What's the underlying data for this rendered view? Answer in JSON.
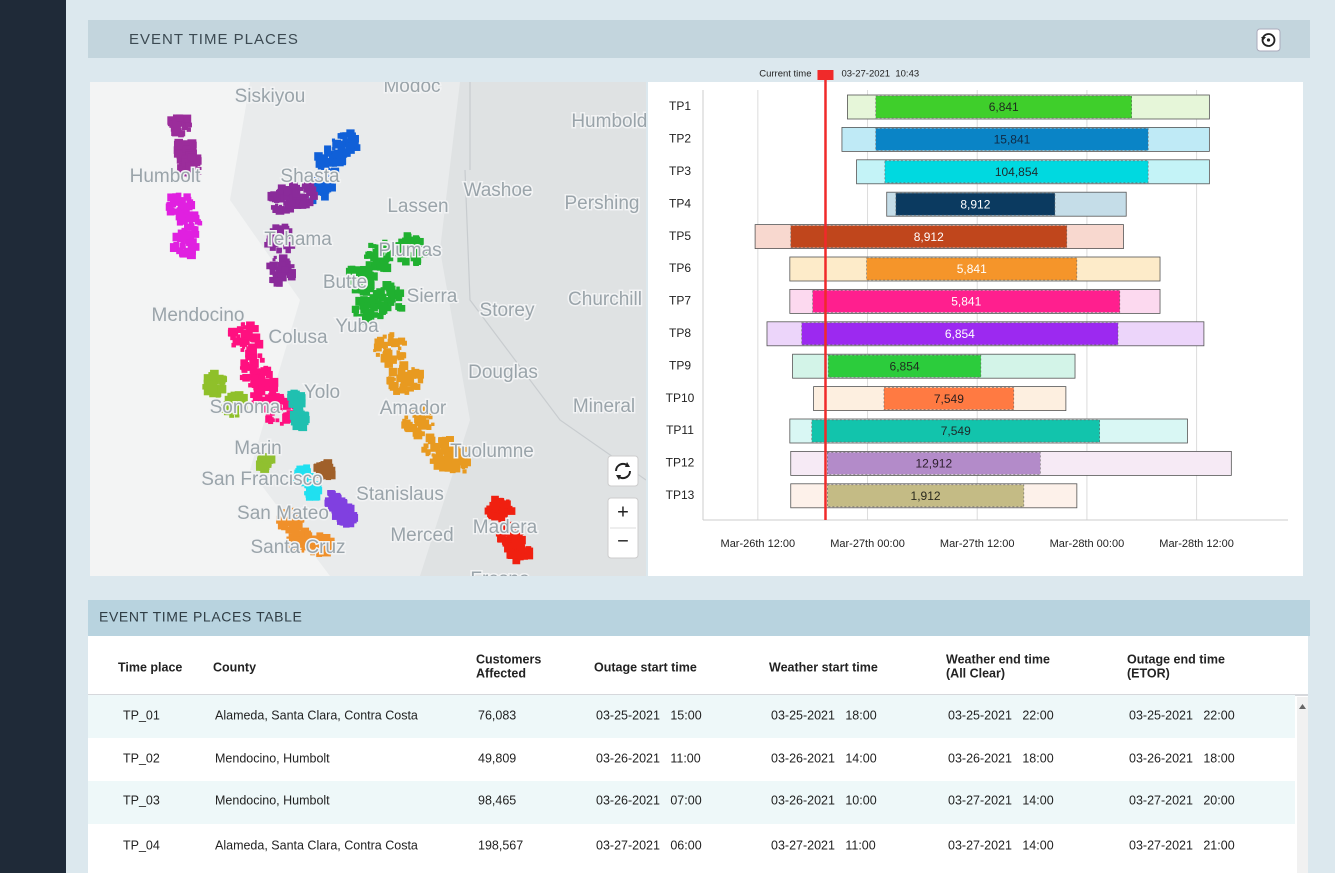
{
  "header": {
    "title": "EVENT TIME PLACES"
  },
  "map": {
    "labels": [
      "Siskiyou",
      "Modoc",
      "Humboldt",
      "Humbolt",
      "Shasta",
      "Lassen",
      "Washoe",
      "Pershing",
      "Tehama",
      "Plumas",
      "Butte",
      "Sierra",
      "Storey",
      "Churchill",
      "Mendocino",
      "Colusa",
      "Yuba",
      "Yolo",
      "Sonoma",
      "Amador",
      "Douglas",
      "Mineral",
      "Marin",
      "Tuolumne",
      "San Francisco",
      "Stanislaus",
      "San Mateo",
      "Merced",
      "Madera",
      "Santa Cruz",
      "Fresno"
    ],
    "zoom_in": "+",
    "zoom_out": "−"
  },
  "chart_data": {
    "type": "gantt",
    "current_time": {
      "label": "Current time",
      "text": "03-27-2021  10:43",
      "x": 19.4
    },
    "xlim": [
      6,
      70
    ],
    "xticks": [
      {
        "value": 12,
        "label": "Mar-26th 12:00"
      },
      {
        "value": 24,
        "label": "Mar-27th 00:00"
      },
      {
        "value": 36,
        "label": "Mar-27th 12:00"
      },
      {
        "value": 48,
        "label": "Mar-28th 00:00"
      },
      {
        "value": 60,
        "label": "Mar-28th 12:00"
      }
    ],
    "grid": true,
    "categories": [
      "TP1",
      "TP2",
      "TP3",
      "TP4",
      "TP5",
      "TP6",
      "TP7",
      "TP8",
      "TP9",
      "TP10",
      "TP11",
      "TP12",
      "TP13"
    ],
    "rows": [
      {
        "outer": [
          21.8,
          61.4
        ],
        "inner": [
          24.9,
          52.9
        ],
        "value": 6841,
        "value_label": "6,841",
        "color": "#3fcf2b",
        "light_color": "#e6f6d9",
        "text_color": "#1e2b1e"
      },
      {
        "outer": [
          21.2,
          61.4
        ],
        "inner": [
          24.9,
          54.7
        ],
        "value": 15841,
        "value_label": "15,841",
        "color": "#0a84c6",
        "light_color": "#bfeaf6",
        "text_color": "#102a44"
      },
      {
        "outer": [
          22.8,
          61.4
        ],
        "inner": [
          25.9,
          54.7
        ],
        "value": 104854,
        "value_label": "104,854",
        "color": "#00d9e0",
        "light_color": "#c4f3f7",
        "text_color": "#1e2b2e"
      },
      {
        "outer": [
          26.1,
          52.3
        ],
        "inner": [
          27.1,
          44.5
        ],
        "value": 8912,
        "value_label": "8,912",
        "color": "#0b3a60",
        "light_color": "#c5dde8",
        "text_color": "#ffffff"
      },
      {
        "outer": [
          11.7,
          52.0
        ],
        "inner": [
          15.6,
          45.8
        ],
        "value": 8912,
        "value_label": "8,912",
        "color": "#c0461c",
        "light_color": "#f8d8cf",
        "text_color": "#ffffff"
      },
      {
        "outer": [
          15.5,
          56.0
        ],
        "inner": [
          23.9,
          46.9
        ],
        "value": 5841,
        "value_label": "5,841",
        "color": "#f5952a",
        "light_color": "#fdebc9",
        "text_color": "#ffffff"
      },
      {
        "outer": [
          15.5,
          56.0
        ],
        "inner": [
          18.0,
          51.6
        ],
        "value": 5841,
        "value_label": "5,841",
        "color": "#ff1f8e",
        "light_color": "#fcd9ef",
        "text_color": "#ffffff"
      },
      {
        "outer": [
          13.0,
          60.8
        ],
        "inner": [
          16.8,
          51.4
        ],
        "value": 6854,
        "value_label": "6,854",
        "color": "#9c29f0",
        "light_color": "#ecd5fa",
        "text_color": "#ffffff"
      },
      {
        "outer": [
          15.8,
          46.7
        ],
        "inner": [
          19.7,
          36.4
        ],
        "value": 6854,
        "value_label": "6,854",
        "color": "#2ccc3c",
        "light_color": "#d3f4e8",
        "text_color": "#1e2b1e"
      },
      {
        "outer": [
          18.1,
          45.7
        ],
        "inner": [
          25.8,
          40.0
        ],
        "value": 7549,
        "value_label": "7,549",
        "color": "#ff7a42",
        "light_color": "#fdefe0",
        "text_color": "#2b1e1e"
      },
      {
        "outer": [
          15.5,
          59.0
        ],
        "inner": [
          17.9,
          49.4
        ],
        "value": 7549,
        "value_label": "7,549",
        "color": "#12c4ac",
        "light_color": "#d9f7f4",
        "text_color": "#1e2b2b"
      },
      {
        "outer": [
          15.6,
          63.8
        ],
        "inner": [
          19.6,
          42.9
        ],
        "value": 12912,
        "value_label": "12,912",
        "color": "#b38bc9",
        "light_color": "#f6eaf5",
        "text_color": "#2b1e2b"
      },
      {
        "outer": [
          15.6,
          46.9
        ],
        "inner": [
          19.6,
          41.1
        ],
        "value": 1912,
        "value_label": "1,912",
        "color": "#c4bb85",
        "light_color": "#fdf1ea",
        "text_color": "#2b2b1e"
      }
    ]
  },
  "table": {
    "title": "EVENT TIME PLACES TABLE",
    "columns": [
      [
        "Time place"
      ],
      [
        "County"
      ],
      [
        "Customers",
        "Affected"
      ],
      [
        "Outage start time"
      ],
      [
        "Weather start time"
      ],
      [
        "Weather end time",
        "(All Clear)"
      ],
      [
        "Outage end time",
        "(ETOR)"
      ]
    ],
    "rows": [
      [
        "TP_01",
        "Alameda, Santa Clara, Contra Costa",
        "76,083",
        "03-25-2021   15:00",
        "03-25-2021   18:00",
        "03-25-2021   22:00",
        "03-25-2021   22:00"
      ],
      [
        "TP_02",
        "Mendocino, Humbolt",
        "49,809",
        "03-26-2021   11:00",
        "03-26-2021   14:00",
        "03-26-2021   18:00",
        "03-26-2021   18:00"
      ],
      [
        "TP_03",
        "Mendocino, Humbolt",
        "98,465",
        "03-26-2021   07:00",
        "03-26-2021   10:00",
        "03-27-2021   14:00",
        "03-27-2021   20:00"
      ],
      [
        "TP_04",
        "Alameda, Santa Clara, Contra Costa",
        "198,567",
        "03-27-2021   06:00",
        "03-27-2021   11:00",
        "03-27-2021   14:00",
        "03-27-2021   21:00"
      ]
    ]
  }
}
